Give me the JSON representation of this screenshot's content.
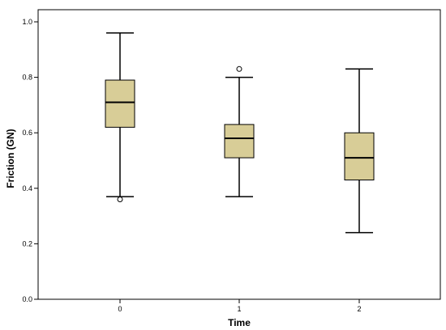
{
  "chart_data": {
    "type": "boxplot",
    "title": "",
    "xlabel": "Time",
    "ylabel": "Friction (GN)",
    "ylim": [
      0.0,
      1.0
    ],
    "yticks": [
      0.0,
      0.2,
      0.4,
      0.6,
      0.8,
      1.0
    ],
    "ytick_labels": [
      "0.0",
      "0.2",
      "0.4",
      "0.6",
      "0.8",
      "1.0"
    ],
    "categories": [
      "0",
      "1",
      "2"
    ],
    "box_color": "#d8cd97",
    "stroke_color": "#000000",
    "grid": false,
    "boxes": [
      {
        "category": "0",
        "min": 0.37,
        "q1": 0.62,
        "median": 0.71,
        "q3": 0.79,
        "max": 0.96,
        "outliers": [
          0.36
        ]
      },
      {
        "category": "1",
        "min": 0.37,
        "q1": 0.51,
        "median": 0.58,
        "q3": 0.63,
        "max": 0.8,
        "outliers": [
          0.83
        ]
      },
      {
        "category": "2",
        "min": 0.24,
        "q1": 0.43,
        "median": 0.51,
        "q3": 0.6,
        "max": 0.83,
        "outliers": []
      }
    ]
  }
}
